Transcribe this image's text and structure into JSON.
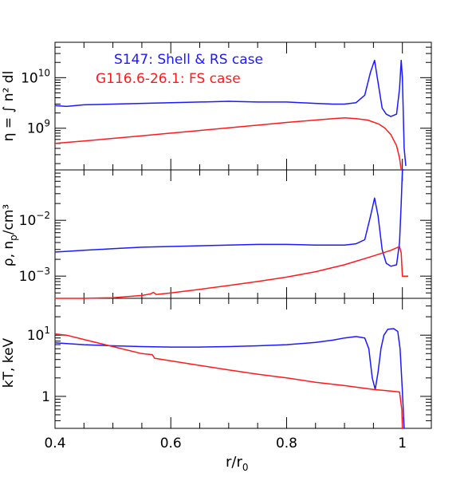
{
  "colors": {
    "blue": "#1a1aff",
    "red": "#ff1a1a",
    "axis": "#000000"
  },
  "xaxis": {
    "label": "r/r",
    "label_sub": "0",
    "ticks": [
      "0.4",
      "0.6",
      "0.8",
      "1"
    ],
    "tick_values": [
      0.4,
      0.6,
      0.8,
      1.0
    ],
    "range": [
      0.4,
      1.05
    ]
  },
  "legend": {
    "blue": "S147: Shell & RS case",
    "red": "G116.6-26.1: FS case"
  },
  "chart_data": [
    {
      "type": "line",
      "title": "",
      "ylabel": "η = ∫ n² dl",
      "ylabel_parts": {
        "visible": "= ∫ n  dl"
      },
      "yscale": "log",
      "ylim": [
        150000000.0,
        50000000000.0
      ],
      "ytick_labels": [
        {
          "base": "10",
          "exp": "10",
          "value": 10000000000.0
        },
        {
          "base": "10",
          "exp": "9",
          "value": 1000000000.0
        }
      ],
      "series": [
        {
          "name": "S147: Shell & RS case",
          "color": "blue",
          "x": [
            0.4,
            0.42,
            0.45,
            0.5,
            0.55,
            0.6,
            0.65,
            0.7,
            0.75,
            0.8,
            0.85,
            0.88,
            0.9,
            0.92,
            0.935,
            0.945,
            0.952,
            0.958,
            0.965,
            0.972,
            0.98,
            0.99,
            0.995,
            0.998,
            1.0,
            1.003,
            1.006
          ],
          "y": [
            2800000000.0,
            2700000000.0,
            2900000000.0,
            3000000000.0,
            3100000000.0,
            3200000000.0,
            3300000000.0,
            3400000000.0,
            3300000000.0,
            3300000000.0,
            3100000000.0,
            3000000000.0,
            3000000000.0,
            3200000000.0,
            4500000000.0,
            13000000000.0,
            22000000000.0,
            8000000000.0,
            2500000000.0,
            1900000000.0,
            1700000000.0,
            1900000000.0,
            6000000000.0,
            22000000000.0,
            10000000000.0,
            400000000.0,
            180000000.0
          ]
        },
        {
          "name": "G116.6-26.1: FS case",
          "color": "red",
          "x": [
            0.4,
            0.45,
            0.5,
            0.55,
            0.6,
            0.65,
            0.7,
            0.75,
            0.8,
            0.85,
            0.88,
            0.9,
            0.92,
            0.94,
            0.96,
            0.97,
            0.98,
            0.99,
            0.995,
            0.998
          ],
          "y": [
            500000000.0,
            560000000.0,
            630000000.0,
            710000000.0,
            800000000.0,
            900000000.0,
            1020000000.0,
            1150000000.0,
            1300000000.0,
            1450000000.0,
            1550000000.0,
            1600000000.0,
            1550000000.0,
            1450000000.0,
            1200000000.0,
            1000000000.0,
            750000000.0,
            450000000.0,
            260000000.0,
            150000000.0
          ]
        }
      ]
    },
    {
      "type": "line",
      "ylabel": "ρ, n  /cm³",
      "ylabel_parts": {
        "main": "ρ, n",
        "sub": "p",
        "tail": "/cm³"
      },
      "yscale": "log",
      "ylim": [
        0.0004,
        0.08
      ],
      "ytick_labels": [
        {
          "base": "10",
          "exp": "−2",
          "value": 0.01
        },
        {
          "base": "10",
          "exp": "−3",
          "value": 0.001
        }
      ],
      "series": [
        {
          "name": "S147: Shell & RS case",
          "color": "blue",
          "x": [
            0.4,
            0.45,
            0.5,
            0.55,
            0.6,
            0.65,
            0.7,
            0.75,
            0.8,
            0.85,
            0.88,
            0.9,
            0.92,
            0.935,
            0.945,
            0.952,
            0.958,
            0.965,
            0.972,
            0.98,
            0.99,
            0.995,
            0.998,
            1.0,
            1.003
          ],
          "y": [
            0.0027,
            0.0029,
            0.0031,
            0.0033,
            0.0034,
            0.0035,
            0.0036,
            0.0037,
            0.0037,
            0.0036,
            0.0036,
            0.0036,
            0.0038,
            0.0045,
            0.012,
            0.025,
            0.012,
            0.003,
            0.0017,
            0.0015,
            0.0016,
            0.004,
            0.02,
            0.08,
            0.08
          ]
        },
        {
          "name": "G116.6-26.1: FS case",
          "color": "red",
          "x": [
            0.4,
            0.45,
            0.5,
            0.55,
            0.565,
            0.57,
            0.575,
            0.6,
            0.65,
            0.7,
            0.75,
            0.8,
            0.85,
            0.9,
            0.95,
            0.98,
            0.995,
            0.998,
            1.0,
            1.01
          ],
          "y": [
            0.00035,
            0.00038,
            0.00041,
            0.00045,
            0.00048,
            0.00051,
            0.00047,
            0.0005,
            0.00058,
            0.00068,
            0.0008,
            0.00096,
            0.0012,
            0.0016,
            0.0023,
            0.0029,
            0.0034,
            0.0026,
            0.001,
            0.001
          ]
        }
      ]
    },
    {
      "type": "line",
      "ylabel": "kT, keV",
      "yscale": "log",
      "ylim": [
        0.3,
        40
      ],
      "ytick_labels": [
        {
          "base": "10",
          "exp": "1",
          "value": 10
        },
        {
          "base": "1",
          "exp": "",
          "value": 1
        }
      ],
      "series": [
        {
          "name": "S147: Shell & RS case",
          "color": "blue",
          "x": [
            0.4,
            0.45,
            0.5,
            0.55,
            0.6,
            0.65,
            0.7,
            0.75,
            0.8,
            0.85,
            0.88,
            0.9,
            0.92,
            0.935,
            0.942,
            0.948,
            0.953,
            0.958,
            0.963,
            0.968,
            0.975,
            0.985,
            0.992,
            0.996,
            1.0,
            1.003
          ],
          "y": [
            7.5,
            7.0,
            6.7,
            6.5,
            6.4,
            6.4,
            6.5,
            6.7,
            7.0,
            7.6,
            8.3,
            9.0,
            9.5,
            9.0,
            6.0,
            2.0,
            1.3,
            2.5,
            6.0,
            10.0,
            12.5,
            12.8,
            11.5,
            6.0,
            1.2,
            0.3
          ]
        },
        {
          "name": "G116.6-26.1: FS case",
          "color": "red",
          "x": [
            0.4,
            0.42,
            0.45,
            0.5,
            0.55,
            0.568,
            0.572,
            0.6,
            0.65,
            0.7,
            0.75,
            0.8,
            0.85,
            0.9,
            0.95,
            0.98,
            0.995,
            0.999,
            1.0
          ],
          "y": [
            10.5,
            10.0,
            8.5,
            6.5,
            5.0,
            4.8,
            4.2,
            3.8,
            3.2,
            2.7,
            2.3,
            2.0,
            1.7,
            1.5,
            1.3,
            1.22,
            1.18,
            0.6,
            0.3
          ]
        }
      ]
    }
  ]
}
